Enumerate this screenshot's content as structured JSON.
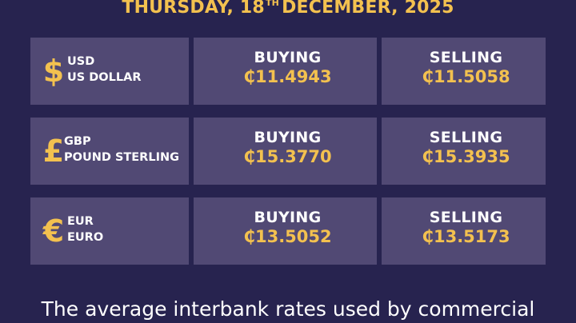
{
  "header": {
    "weekday": "THURSDAY, 18",
    "ordinal_suffix": "TH",
    "month_year": "DECEMBER, 2025"
  },
  "rate_labels": {
    "buying": "BUYING",
    "selling": "SELLING"
  },
  "rates": [
    {
      "symbol": "$",
      "symbol_icon": "dollar-icon",
      "code": "USD",
      "name": "US DOLLAR",
      "buying": "₵11.4943",
      "selling": "₵11.5058"
    },
    {
      "symbol": "£",
      "symbol_icon": "pound-icon",
      "code": "GBP",
      "name": "POUND STERLING",
      "buying": "₵15.3770",
      "selling": "₵15.3935"
    },
    {
      "symbol": "€",
      "symbol_icon": "euro-icon",
      "code": "EUR",
      "name": "EURO",
      "buying": "₵13.5052",
      "selling": "₵13.5173"
    }
  ],
  "footer": {
    "text": "The average interbank rates used by commercial"
  },
  "colors": {
    "background": "#27234f",
    "cell": "#514974",
    "accent": "#f3c14f",
    "text": "#ffffff"
  }
}
